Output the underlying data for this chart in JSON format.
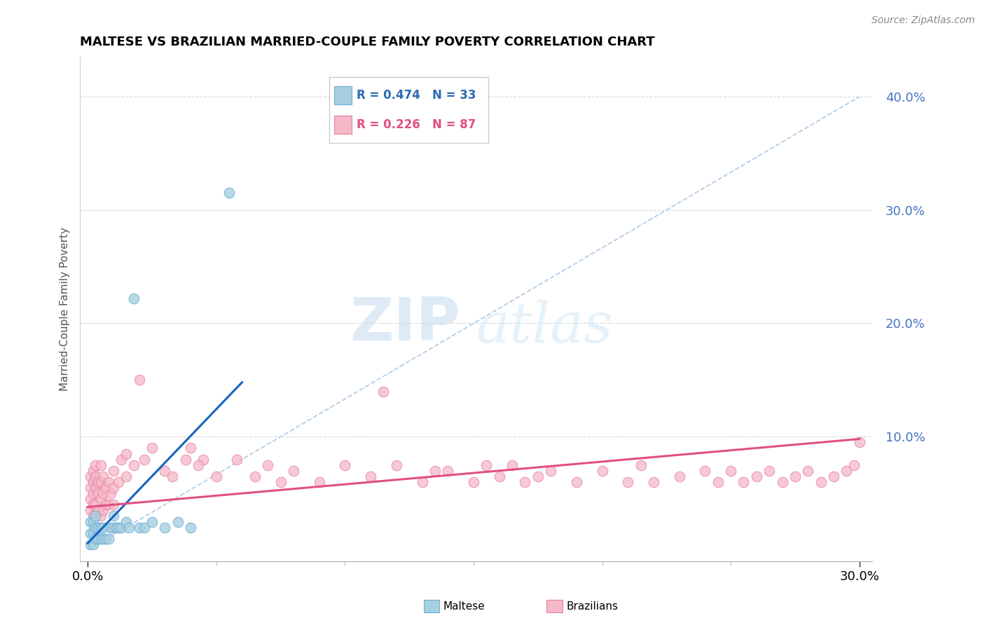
{
  "title": "MALTESE VS BRAZILIAN MARRIED-COUPLE FAMILY POVERTY CORRELATION CHART",
  "source": "Source: ZipAtlas.com",
  "ylabel": "Married-Couple Family Poverty",
  "xlim": [
    -0.003,
    0.305
  ],
  "ylim": [
    -0.01,
    0.435
  ],
  "xtick_positions": [
    0.0,
    0.3
  ],
  "xtick_labels": [
    "0.0%",
    "30.0%"
  ],
  "ytick_positions": [
    0.1,
    0.2,
    0.3,
    0.4
  ],
  "ytick_labels": [
    "10.0%",
    "20.0%",
    "30.0%",
    "40.0%"
  ],
  "maltese_color": "#a8cfe0",
  "maltese_edge": "#6aadd5",
  "brazilian_color": "#f5b8c8",
  "brazilian_edge": "#e880a0",
  "trend_maltese_color": "#1565c0",
  "trend_brazilian_color": "#e05080",
  "diag_color": "#aac8e8",
  "grid_color": "#d8d8d8",
  "legend_R_maltese": "R = 0.474",
  "legend_N_maltese": "N = 33",
  "legend_R_brazilian": "R = 0.226",
  "legend_N_brazilian": "N = 87",
  "watermark_zip": "ZIP",
  "watermark_atlas": "atlas",
  "maltese_x": [
    0.001,
    0.001,
    0.001,
    0.002,
    0.002,
    0.002,
    0.003,
    0.003,
    0.003,
    0.004,
    0.004,
    0.005,
    0.005,
    0.006,
    0.006,
    0.007,
    0.008,
    0.009,
    0.01,
    0.01,
    0.011,
    0.012,
    0.013,
    0.015,
    0.016,
    0.018,
    0.02,
    0.022,
    0.025,
    0.03,
    0.035,
    0.04,
    0.055
  ],
  "maltese_y": [
    0.005,
    0.015,
    0.025,
    0.005,
    0.015,
    0.025,
    0.01,
    0.02,
    0.03,
    0.01,
    0.02,
    0.01,
    0.02,
    0.01,
    0.02,
    0.01,
    0.01,
    0.02,
    0.02,
    0.03,
    0.02,
    0.02,
    0.02,
    0.025,
    0.02,
    0.222,
    0.02,
    0.02,
    0.025,
    0.02,
    0.025,
    0.02,
    0.315
  ],
  "brazilian_x": [
    0.001,
    0.001,
    0.001,
    0.001,
    0.002,
    0.002,
    0.002,
    0.002,
    0.002,
    0.003,
    0.003,
    0.003,
    0.003,
    0.003,
    0.004,
    0.004,
    0.004,
    0.005,
    0.005,
    0.005,
    0.005,
    0.006,
    0.006,
    0.006,
    0.007,
    0.007,
    0.008,
    0.008,
    0.009,
    0.01,
    0.01,
    0.01,
    0.012,
    0.013,
    0.015,
    0.015,
    0.018,
    0.02,
    0.022,
    0.025,
    0.03,
    0.033,
    0.038,
    0.04,
    0.045,
    0.05,
    0.058,
    0.065,
    0.07,
    0.075,
    0.08,
    0.09,
    0.1,
    0.11,
    0.115,
    0.12,
    0.13,
    0.14,
    0.15,
    0.155,
    0.16,
    0.165,
    0.17,
    0.175,
    0.18,
    0.19,
    0.2,
    0.21,
    0.215,
    0.22,
    0.23,
    0.24,
    0.245,
    0.25,
    0.255,
    0.26,
    0.265,
    0.27,
    0.275,
    0.28,
    0.285,
    0.29,
    0.295,
    0.298,
    0.3,
    0.043,
    0.135
  ],
  "brazilian_y": [
    0.035,
    0.045,
    0.055,
    0.065,
    0.03,
    0.04,
    0.05,
    0.06,
    0.07,
    0.03,
    0.04,
    0.055,
    0.065,
    0.075,
    0.035,
    0.05,
    0.06,
    0.03,
    0.045,
    0.06,
    0.075,
    0.035,
    0.05,
    0.065,
    0.04,
    0.055,
    0.04,
    0.06,
    0.05,
    0.04,
    0.055,
    0.07,
    0.06,
    0.08,
    0.065,
    0.085,
    0.075,
    0.15,
    0.08,
    0.09,
    0.07,
    0.065,
    0.08,
    0.09,
    0.08,
    0.065,
    0.08,
    0.065,
    0.075,
    0.06,
    0.07,
    0.06,
    0.075,
    0.065,
    0.14,
    0.075,
    0.06,
    0.07,
    0.06,
    0.075,
    0.065,
    0.075,
    0.06,
    0.065,
    0.07,
    0.06,
    0.07,
    0.06,
    0.075,
    0.06,
    0.065,
    0.07,
    0.06,
    0.07,
    0.06,
    0.065,
    0.07,
    0.06,
    0.065,
    0.07,
    0.06,
    0.065,
    0.07,
    0.075,
    0.095,
    0.075,
    0.07
  ],
  "trend_maltese_x0": 0.0,
  "trend_maltese_x1": 0.06,
  "trend_maltese_y0": 0.006,
  "trend_maltese_y1": 0.148,
  "trend_brazilian_x0": 0.0,
  "trend_brazilian_x1": 0.3,
  "trend_brazilian_y0": 0.038,
  "trend_brazilian_y1": 0.098
}
